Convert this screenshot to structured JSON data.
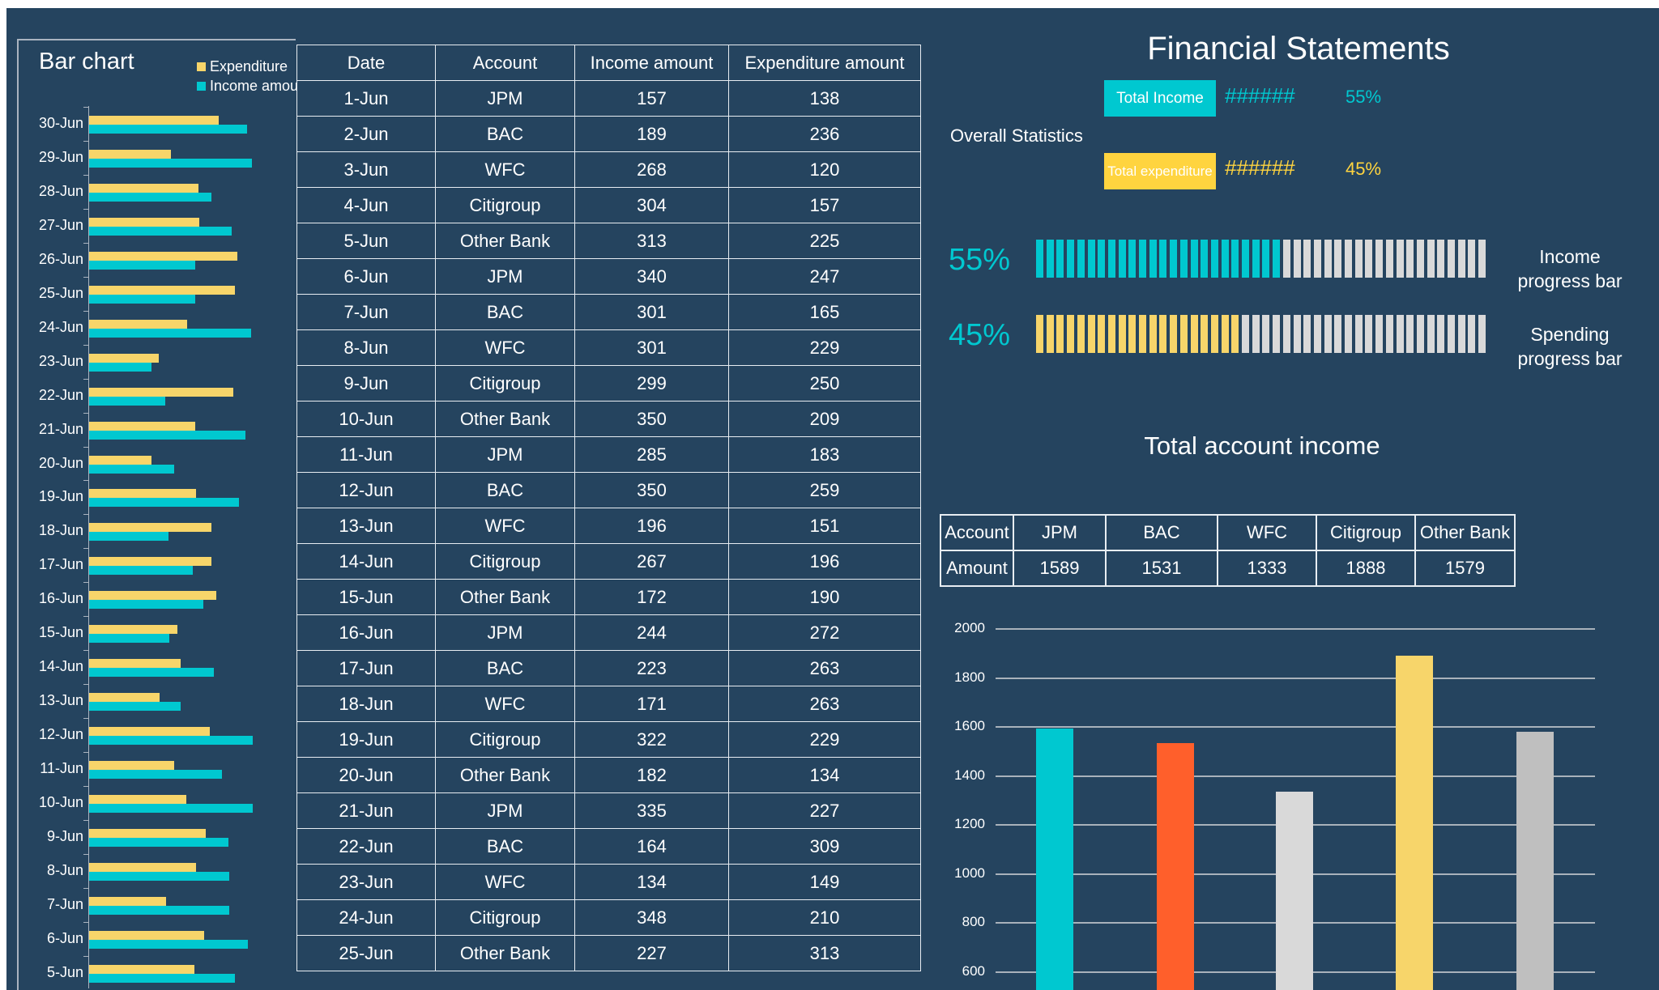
{
  "left_chart": {
    "title": "Bar chart",
    "legend": [
      {
        "label": "Expenditure",
        "color": "#f7d56a"
      },
      {
        "label": "Income amount",
        "color": "#00c8d0"
      }
    ]
  },
  "table": {
    "headers": [
      "Date",
      "Account",
      "Income amount",
      "Expenditure amount"
    ],
    "rows": [
      [
        "1-Jun",
        "JPM",
        "157",
        "138"
      ],
      [
        "2-Jun",
        "BAC",
        "189",
        "236"
      ],
      [
        "3-Jun",
        "WFC",
        "268",
        "120"
      ],
      [
        "4-Jun",
        "Citigroup",
        "304",
        "157"
      ],
      [
        "5-Jun",
        "Other Bank",
        "313",
        "225"
      ],
      [
        "6-Jun",
        "JPM",
        "340",
        "247"
      ],
      [
        "7-Jun",
        "BAC",
        "301",
        "165"
      ],
      [
        "8-Jun",
        "WFC",
        "301",
        "229"
      ],
      [
        "9-Jun",
        "Citigroup",
        "299",
        "250"
      ],
      [
        "10-Jun",
        "Other Bank",
        "350",
        "209"
      ],
      [
        "11-Jun",
        "JPM",
        "285",
        "183"
      ],
      [
        "12-Jun",
        "BAC",
        "350",
        "259"
      ],
      [
        "13-Jun",
        "WFC",
        "196",
        "151"
      ],
      [
        "14-Jun",
        "Citigroup",
        "267",
        "196"
      ],
      [
        "15-Jun",
        "Other Bank",
        "172",
        "190"
      ],
      [
        "16-Jun",
        "JPM",
        "244",
        "272"
      ],
      [
        "17-Jun",
        "BAC",
        "223",
        "263"
      ],
      [
        "18-Jun",
        "WFC",
        "171",
        "263"
      ],
      [
        "19-Jun",
        "Citigroup",
        "322",
        "229"
      ],
      [
        "20-Jun",
        "Other Bank",
        "182",
        "134"
      ],
      [
        "21-Jun",
        "JPM",
        "335",
        "227"
      ],
      [
        "22-Jun",
        "BAC",
        "164",
        "309"
      ],
      [
        "23-Jun",
        "WFC",
        "134",
        "149"
      ],
      [
        "24-Jun",
        "Citigroup",
        "348",
        "210"
      ],
      [
        "25-Jun",
        "Other Bank",
        "227",
        "313"
      ]
    ]
  },
  "statements": {
    "title": "Financial Statements",
    "overall_label": "Overall Statistics",
    "total_income_label": "Total Income",
    "total_income_value": "######",
    "total_income_pct": "55%",
    "total_expenditure_label": "Total expenditure",
    "total_expenditure_value": "######",
    "total_expenditure_pct": "45%",
    "income_progress": {
      "pct_label": "55%",
      "fraction": 0.55,
      "label_line1": "Income",
      "label_line2": "progress bar",
      "color": "#00c8d0"
    },
    "spending_progress": {
      "pct_label": "45%",
      "fraction": 0.45,
      "label_line1": "Spending",
      "label_line2": "progress bar",
      "color": "#f7d56a"
    }
  },
  "account_income": {
    "title": "Total account income",
    "row1_label": "Account",
    "row2_label": "Amount",
    "accounts": [
      "JPM",
      "BAC",
      "WFC",
      "Citigroup",
      "Other Bank"
    ],
    "amounts": [
      "1589",
      "1531",
      "1333",
      "1888",
      "1579"
    ]
  },
  "chart_data": [
    {
      "type": "bar",
      "orientation": "horizontal",
      "title": "Bar chart",
      "categories": [
        "30-Jun",
        "29-Jun",
        "28-Jun",
        "27-Jun",
        "26-Jun",
        "25-Jun",
        "24-Jun",
        "23-Jun",
        "22-Jun",
        "21-Jun",
        "20-Jun",
        "19-Jun",
        "18-Jun",
        "17-Jun",
        "16-Jun",
        "15-Jun",
        "14-Jun",
        "13-Jun",
        "12-Jun",
        "11-Jun",
        "10-Jun",
        "9-Jun",
        "8-Jun",
        "7-Jun",
        "6-Jun",
        "5-Jun"
      ],
      "series": [
        {
          "name": "Expenditure",
          "color": "#f7d56a",
          "values": [
            277,
            175,
            234,
            236,
            317,
            313,
            210,
            149,
            309,
            227,
            134,
            229,
            263,
            263,
            272,
            190,
            196,
            151,
            259,
            183,
            209,
            250,
            229,
            165,
            247,
            225
          ]
        },
        {
          "name": "Income amount",
          "color": "#00c8d0",
          "values": [
            338,
            349,
            263,
            306,
            227,
            227,
            348,
            134,
            164,
            335,
            182,
            322,
            171,
            223,
            244,
            172,
            267,
            196,
            350,
            285,
            350,
            299,
            301,
            301,
            340,
            313
          ]
        }
      ],
      "legend": "top-right"
    },
    {
      "type": "bar",
      "title": "Total account income",
      "categories": [
        "JPM",
        "BAC",
        "WFC",
        "Citigroup",
        "Other Bank"
      ],
      "values": [
        1589,
        1531,
        1333,
        1888,
        1579
      ],
      "colors": [
        "#00c8d0",
        "#ff5f2b",
        "#d9d9d9",
        "#f7d56a",
        "#bfbfbf"
      ],
      "yticks": [
        600,
        800,
        1000,
        1200,
        1400,
        1600,
        1800,
        2000
      ],
      "ylim": [
        600,
        2000
      ],
      "grid": true
    }
  ]
}
